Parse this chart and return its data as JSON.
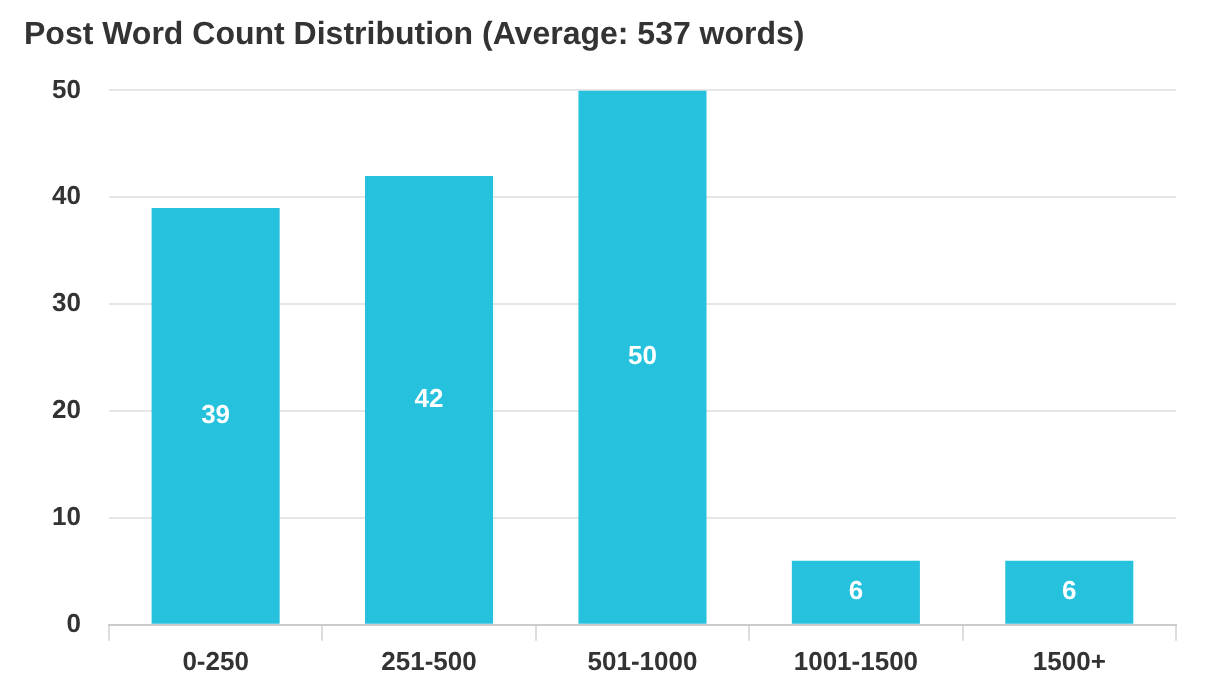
{
  "chart_data": {
    "type": "bar",
    "title": "Post Word Count Distribution (Average: 537 words)",
    "categories": [
      "0-250",
      "251-500",
      "501-1000",
      "1001-1500",
      "1500+"
    ],
    "values": [
      39,
      42,
      50,
      6,
      6
    ],
    "color": "#26c2dd",
    "ylim": [
      0,
      50
    ],
    "yticks": [
      0,
      10,
      20,
      30,
      40,
      50
    ],
    "grid": "y",
    "data_labels": true,
    "legend": false
  }
}
